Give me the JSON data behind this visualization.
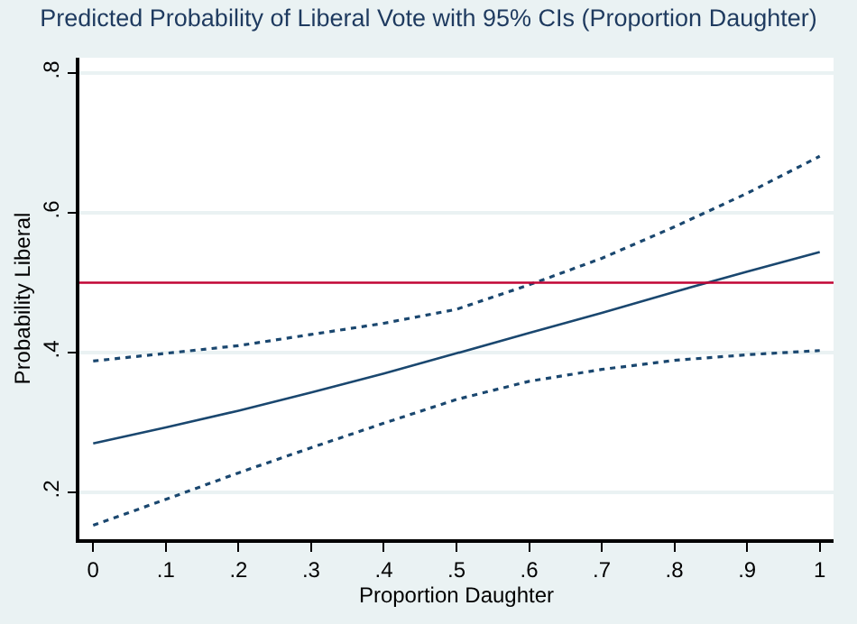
{
  "chart_data": {
    "type": "line",
    "title": "Predicted Probability of Liberal Vote with 95% CIs (Proportion Daughter)",
    "xlabel": "Proportion Daughter",
    "ylabel": "Probability Liberal",
    "x": [
      0,
      0.1,
      0.2,
      0.3,
      0.4,
      0.5,
      0.6,
      0.7,
      0.8,
      0.9,
      1
    ],
    "series": [
      {
        "color": "#1a476f",
        "line_style": "solid",
        "values": [
          0.27,
          0.293,
          0.317,
          0.343,
          0.37,
          0.399,
          0.428,
          0.457,
          0.487,
          0.516,
          0.544
        ]
      },
      {
        "color": "#1a476f",
        "line_style": "dotted",
        "values": [
          0.388,
          0.399,
          0.41,
          0.426,
          0.442,
          0.462,
          0.497,
          0.535,
          0.58,
          0.628,
          0.681
        ]
      },
      {
        "color": "#1a476f",
        "line_style": "dotted",
        "values": [
          0.153,
          0.19,
          0.228,
          0.264,
          0.299,
          0.333,
          0.359,
          0.376,
          0.389,
          0.397,
          0.403
        ]
      }
    ],
    "ref_lines": [
      {
        "axis": "y",
        "value": 0.5,
        "color": "#c10534",
        "line_style": "solid"
      }
    ],
    "xlim": [
      -0.019,
      1.019
    ],
    "ylim": [
      0.133,
      0.822
    ],
    "xticks": [
      0,
      {
        "value": 0.1,
        "label": ".1"
      },
      {
        "value": 0.2,
        "label": ".2"
      },
      {
        "value": 0.3,
        "label": ".3"
      },
      {
        "value": 0.4,
        "label": ".4"
      },
      {
        "value": 0.5,
        "label": ".5"
      },
      {
        "value": 0.6,
        "label": ".6"
      },
      {
        "value": 0.7,
        "label": ".7"
      },
      {
        "value": 0.8,
        "label": ".8"
      },
      {
        "value": 0.9,
        "label": ".9"
      },
      1
    ],
    "yticks": [
      {
        "value": 0.2,
        "label": ".2"
      },
      {
        "value": 0.4,
        "label": ".4"
      },
      {
        "value": 0.6,
        "label": ".6"
      },
      {
        "value": 0.8,
        "label": ".8"
      }
    ],
    "grid": "y",
    "marker": "none"
  }
}
